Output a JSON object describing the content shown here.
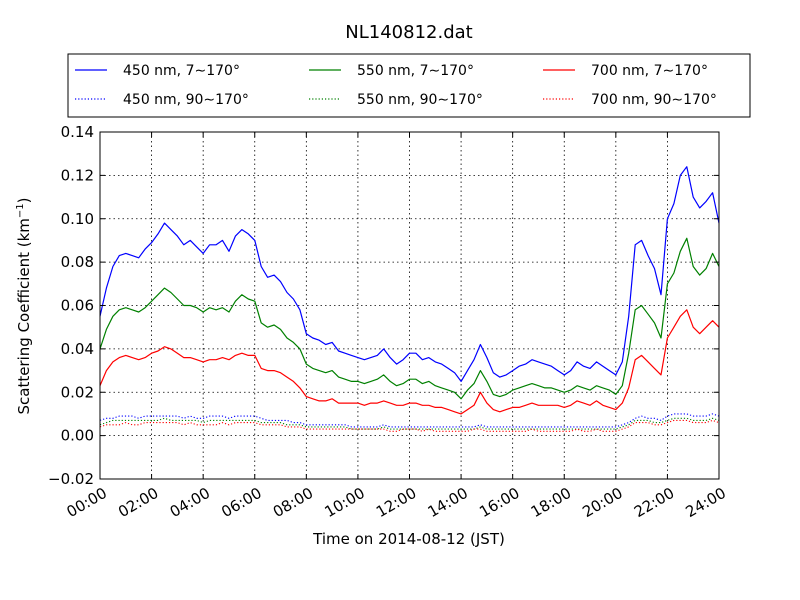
{
  "chart_data": {
    "type": "line",
    "title": "NL140812.dat",
    "xlabel": "Time on 2014-08-12 (JST)",
    "ylabel": "Scattering Coefficient (km",
    "ylabel_sup": "−1",
    "ylabel_end": ")",
    "xlim": [
      0,
      24
    ],
    "ylim": [
      -0.02,
      0.14
    ],
    "x_ticks": [
      0,
      2,
      4,
      6,
      8,
      10,
      12,
      14,
      16,
      18,
      20,
      22,
      24
    ],
    "x_tick_labels": [
      "00:00",
      "02:00",
      "04:00",
      "06:00",
      "08:00",
      "10:00",
      "12:00",
      "14:00",
      "16:00",
      "18:00",
      "20:00",
      "22:00",
      "24:00"
    ],
    "y_ticks": [
      -0.02,
      0.0,
      0.02,
      0.04,
      0.06,
      0.08,
      0.1,
      0.12,
      0.14
    ],
    "y_tick_labels": [
      "−0.02",
      "0.00",
      "0.02",
      "0.04",
      "0.06",
      "0.08",
      "0.10",
      "0.12",
      "0.14"
    ],
    "grid": true,
    "legend_position": "top, above plot, 3 columns",
    "x_hours": [
      0.0,
      0.25,
      0.5,
      0.75,
      1.0,
      1.25,
      1.5,
      1.75,
      2.0,
      2.25,
      2.5,
      2.75,
      3.0,
      3.25,
      3.5,
      3.75,
      4.0,
      4.25,
      4.5,
      4.75,
      5.0,
      5.25,
      5.5,
      5.75,
      6.0,
      6.25,
      6.5,
      6.75,
      7.0,
      7.25,
      7.5,
      7.75,
      8.0,
      8.25,
      8.5,
      8.75,
      9.0,
      9.25,
      9.5,
      9.75,
      10.0,
      10.25,
      10.5,
      10.75,
      11.0,
      11.25,
      11.5,
      11.75,
      12.0,
      12.25,
      12.5,
      12.75,
      13.0,
      13.25,
      13.5,
      13.75,
      14.0,
      14.25,
      14.5,
      14.75,
      15.0,
      15.25,
      15.5,
      15.75,
      16.0,
      16.25,
      16.5,
      16.75,
      17.0,
      17.25,
      17.5,
      17.75,
      18.0,
      18.25,
      18.5,
      18.75,
      19.0,
      19.25,
      19.5,
      19.75,
      20.0,
      20.25,
      20.5,
      20.75,
      21.0,
      21.25,
      21.5,
      21.75,
      22.0,
      22.25,
      22.5,
      22.75,
      23.0,
      23.25,
      23.5,
      23.75,
      24.0
    ],
    "series": [
      {
        "name": "450 nm, 7∼170°",
        "color": "#0000ff",
        "style": "solid",
        "values": [
          0.055,
          0.068,
          0.078,
          0.083,
          0.084,
          0.083,
          0.082,
          0.086,
          0.089,
          0.093,
          0.098,
          0.095,
          0.092,
          0.088,
          0.09,
          0.087,
          0.084,
          0.088,
          0.088,
          0.09,
          0.085,
          0.092,
          0.095,
          0.093,
          0.09,
          0.078,
          0.073,
          0.074,
          0.071,
          0.066,
          0.063,
          0.058,
          0.047,
          0.045,
          0.044,
          0.042,
          0.043,
          0.039,
          0.038,
          0.037,
          0.036,
          0.035,
          0.036,
          0.037,
          0.04,
          0.036,
          0.033,
          0.035,
          0.038,
          0.038,
          0.035,
          0.036,
          0.034,
          0.033,
          0.031,
          0.029,
          0.025,
          0.03,
          0.035,
          0.042,
          0.036,
          0.029,
          0.027,
          0.028,
          0.03,
          0.032,
          0.033,
          0.035,
          0.034,
          0.033,
          0.032,
          0.03,
          0.028,
          0.03,
          0.034,
          0.032,
          0.031,
          0.034,
          0.032,
          0.03,
          0.028,
          0.034,
          0.055,
          0.088,
          0.09,
          0.083,
          0.077,
          0.065,
          0.1,
          0.107,
          0.12,
          0.124,
          0.11,
          0.105,
          0.108,
          0.112,
          0.098
        ]
      },
      {
        "name": "550 nm, 7∼170°",
        "color": "#008000",
        "style": "solid",
        "values": [
          0.04,
          0.049,
          0.055,
          0.058,
          0.059,
          0.058,
          0.057,
          0.059,
          0.062,
          0.065,
          0.068,
          0.066,
          0.063,
          0.06,
          0.06,
          0.059,
          0.057,
          0.059,
          0.058,
          0.059,
          0.057,
          0.062,
          0.065,
          0.063,
          0.062,
          0.052,
          0.05,
          0.051,
          0.049,
          0.045,
          0.043,
          0.04,
          0.033,
          0.031,
          0.03,
          0.029,
          0.03,
          0.027,
          0.026,
          0.025,
          0.025,
          0.024,
          0.025,
          0.026,
          0.028,
          0.025,
          0.023,
          0.024,
          0.026,
          0.026,
          0.024,
          0.025,
          0.023,
          0.022,
          0.021,
          0.02,
          0.017,
          0.021,
          0.024,
          0.03,
          0.025,
          0.019,
          0.018,
          0.019,
          0.021,
          0.022,
          0.023,
          0.024,
          0.023,
          0.022,
          0.022,
          0.021,
          0.02,
          0.021,
          0.023,
          0.022,
          0.021,
          0.023,
          0.022,
          0.021,
          0.019,
          0.023,
          0.038,
          0.058,
          0.06,
          0.056,
          0.052,
          0.045,
          0.07,
          0.075,
          0.085,
          0.091,
          0.078,
          0.074,
          0.077,
          0.084,
          0.078
        ]
      },
      {
        "name": "700 nm, 7∼170°",
        "color": "#ff0000",
        "style": "solid",
        "values": [
          0.023,
          0.03,
          0.034,
          0.036,
          0.037,
          0.036,
          0.035,
          0.036,
          0.038,
          0.039,
          0.041,
          0.04,
          0.038,
          0.036,
          0.036,
          0.035,
          0.034,
          0.035,
          0.035,
          0.036,
          0.035,
          0.037,
          0.038,
          0.037,
          0.037,
          0.031,
          0.03,
          0.03,
          0.029,
          0.027,
          0.025,
          0.022,
          0.018,
          0.017,
          0.016,
          0.016,
          0.017,
          0.015,
          0.015,
          0.015,
          0.015,
          0.014,
          0.015,
          0.015,
          0.016,
          0.015,
          0.014,
          0.014,
          0.015,
          0.015,
          0.014,
          0.014,
          0.013,
          0.013,
          0.012,
          0.011,
          0.01,
          0.012,
          0.014,
          0.02,
          0.015,
          0.012,
          0.011,
          0.012,
          0.013,
          0.013,
          0.014,
          0.015,
          0.014,
          0.014,
          0.014,
          0.014,
          0.013,
          0.014,
          0.016,
          0.015,
          0.014,
          0.016,
          0.014,
          0.013,
          0.012,
          0.015,
          0.022,
          0.035,
          0.037,
          0.034,
          0.031,
          0.028,
          0.045,
          0.05,
          0.055,
          0.058,
          0.05,
          0.047,
          0.05,
          0.053,
          0.05
        ]
      },
      {
        "name": "450 nm, 90∼170°",
        "color": "#0000ff",
        "style": "dotted",
        "values": [
          0.007,
          0.008,
          0.008,
          0.009,
          0.009,
          0.009,
          0.008,
          0.009,
          0.009,
          0.009,
          0.009,
          0.009,
          0.009,
          0.008,
          0.009,
          0.008,
          0.008,
          0.009,
          0.009,
          0.009,
          0.008,
          0.009,
          0.009,
          0.009,
          0.009,
          0.008,
          0.007,
          0.007,
          0.007,
          0.007,
          0.006,
          0.006,
          0.005,
          0.005,
          0.005,
          0.005,
          0.005,
          0.005,
          0.005,
          0.004,
          0.004,
          0.004,
          0.004,
          0.004,
          0.005,
          0.004,
          0.004,
          0.004,
          0.004,
          0.004,
          0.004,
          0.004,
          0.004,
          0.004,
          0.004,
          0.004,
          0.004,
          0.004,
          0.004,
          0.005,
          0.004,
          0.004,
          0.004,
          0.004,
          0.004,
          0.004,
          0.004,
          0.004,
          0.004,
          0.004,
          0.004,
          0.004,
          0.004,
          0.004,
          0.004,
          0.004,
          0.004,
          0.004,
          0.004,
          0.004,
          0.004,
          0.005,
          0.006,
          0.008,
          0.009,
          0.008,
          0.008,
          0.007,
          0.009,
          0.01,
          0.01,
          0.01,
          0.009,
          0.009,
          0.009,
          0.01,
          0.009
        ]
      },
      {
        "name": "550 nm, 90∼170°",
        "color": "#008000",
        "style": "dotted",
        "values": [
          0.005,
          0.006,
          0.007,
          0.007,
          0.007,
          0.007,
          0.007,
          0.007,
          0.007,
          0.007,
          0.008,
          0.007,
          0.007,
          0.007,
          0.007,
          0.007,
          0.006,
          0.007,
          0.007,
          0.007,
          0.007,
          0.007,
          0.007,
          0.007,
          0.007,
          0.006,
          0.006,
          0.006,
          0.006,
          0.005,
          0.005,
          0.005,
          0.004,
          0.004,
          0.004,
          0.004,
          0.004,
          0.004,
          0.004,
          0.003,
          0.003,
          0.003,
          0.003,
          0.003,
          0.004,
          0.003,
          0.003,
          0.003,
          0.003,
          0.003,
          0.003,
          0.003,
          0.003,
          0.003,
          0.003,
          0.003,
          0.003,
          0.003,
          0.003,
          0.004,
          0.003,
          0.003,
          0.003,
          0.003,
          0.003,
          0.003,
          0.003,
          0.003,
          0.003,
          0.003,
          0.003,
          0.003,
          0.003,
          0.003,
          0.003,
          0.003,
          0.003,
          0.003,
          0.003,
          0.003,
          0.003,
          0.004,
          0.005,
          0.007,
          0.007,
          0.007,
          0.006,
          0.006,
          0.007,
          0.008,
          0.008,
          0.008,
          0.007,
          0.007,
          0.007,
          0.008,
          0.007
        ]
      },
      {
        "name": "700 nm, 90∼170°",
        "color": "#ff0000",
        "style": "dotted",
        "values": [
          0.004,
          0.005,
          0.005,
          0.005,
          0.006,
          0.005,
          0.005,
          0.006,
          0.006,
          0.006,
          0.006,
          0.006,
          0.006,
          0.005,
          0.006,
          0.005,
          0.005,
          0.005,
          0.005,
          0.006,
          0.005,
          0.006,
          0.006,
          0.006,
          0.006,
          0.005,
          0.005,
          0.005,
          0.005,
          0.004,
          0.004,
          0.004,
          0.003,
          0.003,
          0.003,
          0.003,
          0.003,
          0.003,
          0.003,
          0.003,
          0.003,
          0.003,
          0.003,
          0.003,
          0.003,
          0.002,
          0.002,
          0.003,
          0.003,
          0.003,
          0.002,
          0.003,
          0.002,
          0.002,
          0.002,
          0.002,
          0.002,
          0.002,
          0.003,
          0.003,
          0.002,
          0.002,
          0.002,
          0.002,
          0.002,
          0.002,
          0.002,
          0.003,
          0.002,
          0.002,
          0.002,
          0.002,
          0.002,
          0.002,
          0.003,
          0.002,
          0.002,
          0.003,
          0.002,
          0.002,
          0.002,
          0.003,
          0.004,
          0.006,
          0.006,
          0.006,
          0.005,
          0.005,
          0.006,
          0.007,
          0.007,
          0.007,
          0.006,
          0.006,
          0.006,
          0.007,
          0.006
        ]
      }
    ]
  }
}
